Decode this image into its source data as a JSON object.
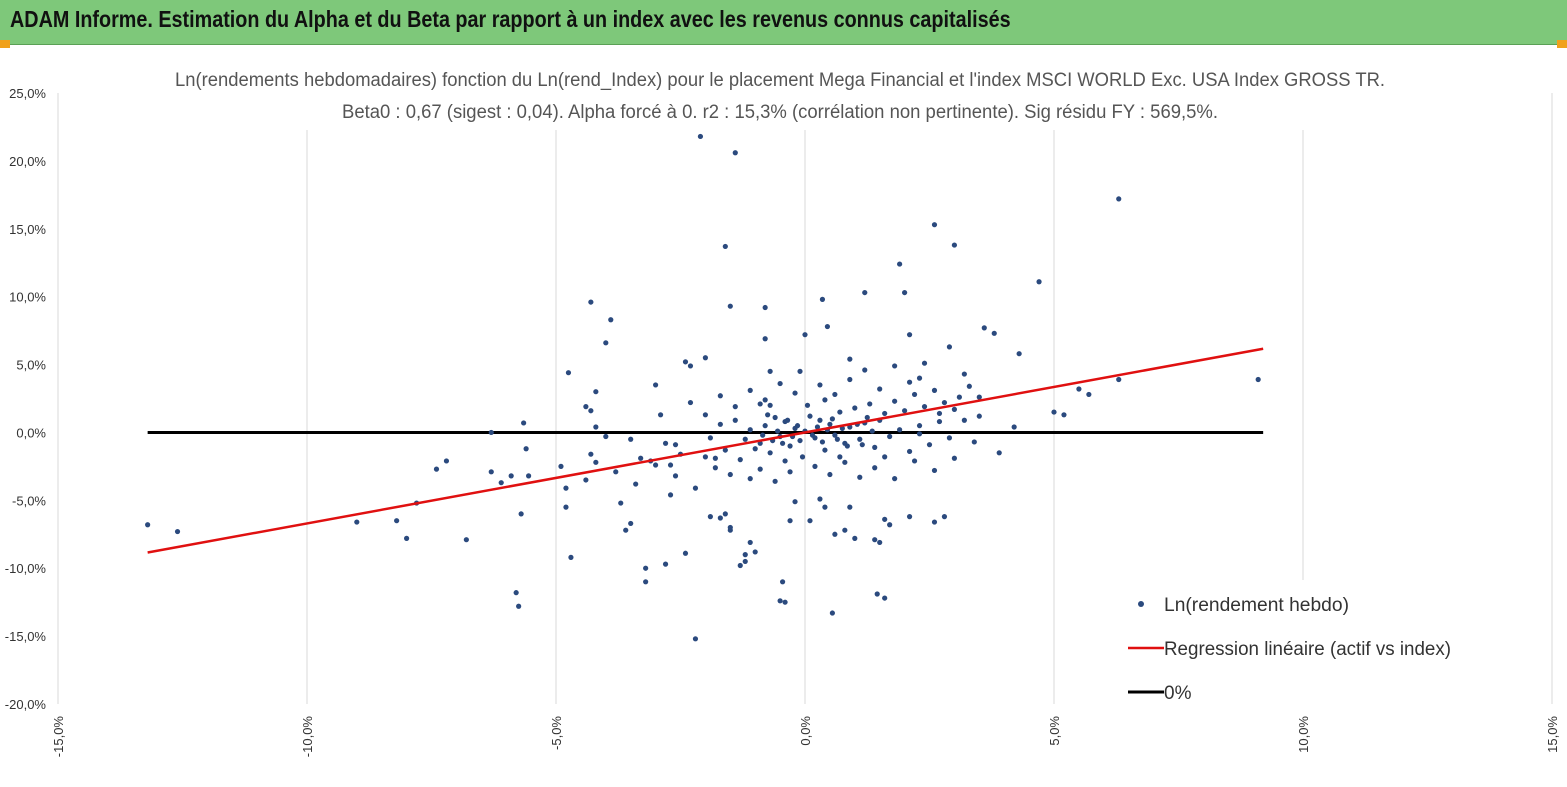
{
  "banner": {
    "title": "ADAM Informe. Estimation du Alpha et du Beta par rapport à un index avec les revenus connus capitalisés"
  },
  "colors": {
    "banner_bg": "#7ec87a",
    "corner_accent": "#f0a11c",
    "points": "#2b4a7e",
    "regression": "#e01010",
    "zero_line": "#000000",
    "grid": "#d9d9d9"
  },
  "chart_data": {
    "type": "scatter",
    "title_line1": "Ln(rendements hebdomadaires) fonction du Ln(rend_Index) pour le placement Mega Financial  et l'index MSCI WORLD Exc. USA Index GROSS TR.",
    "title_line2": "Beta0 : 0,67 (sigest : 0,04). Alpha forcé à 0. r2 : 15,3% (corrélation non pertinente). Sig résidu FY : 569,5%.",
    "xlim": [
      -15,
      15
    ],
    "ylim": [
      -20,
      25
    ],
    "x_ticks": [
      -15,
      -10,
      -5,
      0,
      5,
      10,
      15
    ],
    "x_tick_labels": [
      "-15,0%",
      "-10,0%",
      "-5,0%",
      "0,0%",
      "5,0%",
      "10,0%",
      "15,0%"
    ],
    "y_ticks": [
      25,
      20,
      15,
      10,
      5,
      0,
      -5,
      -10,
      -15,
      -20
    ],
    "y_tick_labels": [
      "25,0%",
      "20,0%",
      "15,0%",
      "10,0%",
      "5,0%",
      "0,0%",
      "-5,0%",
      "-10,0%",
      "-15,0%",
      "-20,0%"
    ],
    "grid": "vertical",
    "legend_position": "bottom-right",
    "legend": [
      "Ln(rendement hebdo)",
      "Regression linéaire (actif vs index)",
      "0%"
    ],
    "regression": {
      "slope": 0.67,
      "intercept": 0,
      "x_range": [
        -13.2,
        9.2
      ]
    },
    "zero_line": {
      "y": 0,
      "x_range": [
        -13.2,
        9.2
      ]
    },
    "points": [
      [
        -13.2,
        -6.8
      ],
      [
        -12.6,
        -7.3
      ],
      [
        -9,
        -6.6
      ],
      [
        -8.2,
        -6.5
      ],
      [
        -8,
        -7.8
      ],
      [
        -7.8,
        -5.2
      ],
      [
        -7.4,
        -2.7
      ],
      [
        -7.2,
        -2.1
      ],
      [
        -6.8,
        -7.9
      ],
      [
        -6.3,
        0
      ],
      [
        -6.3,
        -2.9
      ],
      [
        -6.1,
        -3.7
      ],
      [
        -5.9,
        -3.2
      ],
      [
        -5.8,
        -11.8
      ],
      [
        -5.75,
        -12.8
      ],
      [
        -5.7,
        -6
      ],
      [
        -5.65,
        0.7
      ],
      [
        -5.6,
        -1.2
      ],
      [
        -5.55,
        -3.2
      ],
      [
        -4.9,
        -2.5
      ],
      [
        -4.8,
        -5.5
      ],
      [
        -4.8,
        -4.1
      ],
      [
        -4.7,
        -9.2
      ],
      [
        -4.75,
        4.4
      ],
      [
        -4.4,
        -3.5
      ],
      [
        -4.3,
        -1.6
      ],
      [
        -4.2,
        -2.2
      ],
      [
        -4.2,
        0.4
      ],
      [
        -4.3,
        9.6
      ],
      [
        -4.0,
        6.6
      ],
      [
        -3.9,
        8.3
      ],
      [
        -4.2,
        3
      ],
      [
        -4.4,
        1.9
      ],
      [
        -4.3,
        1.6
      ],
      [
        -4.0,
        -0.3
      ],
      [
        -3.7,
        -5.2
      ],
      [
        -3.6,
        -7.2
      ],
      [
        -3.5,
        -6.7
      ],
      [
        -3.2,
        -10
      ],
      [
        -3.2,
        -11
      ],
      [
        -3.1,
        -2.1
      ],
      [
        -3.0,
        3.5
      ],
      [
        -2.9,
        1.3
      ],
      [
        -2.8,
        -9.7
      ],
      [
        -2.7,
        -2.4
      ],
      [
        -2.6,
        -0.9
      ],
      [
        -2.4,
        -8.9
      ],
      [
        -2.4,
        5.2
      ],
      [
        -2.3,
        4.9
      ],
      [
        -2.2,
        -15.2
      ],
      [
        -2.0,
        5.5
      ],
      [
        -2.1,
        21.8
      ],
      [
        -1.9,
        -6.2
      ],
      [
        -1.8,
        -1.9
      ],
      [
        -1.7,
        -6.3
      ],
      [
        -1.6,
        -6
      ],
      [
        -1.5,
        -7.2
      ],
      [
        -1.5,
        -7
      ],
      [
        -1.4,
        20.6
      ],
      [
        -1.6,
        13.7
      ],
      [
        -1.5,
        9.3
      ],
      [
        -1.3,
        -9.8
      ],
      [
        -1.2,
        -9
      ],
      [
        -1.2,
        -9.5
      ],
      [
        -1.1,
        -8.1
      ],
      [
        -1.0,
        -8.8
      ],
      [
        -0.9,
        2.1
      ],
      [
        -0.8,
        9.2
      ],
      [
        -0.8,
        6.9
      ],
      [
        -0.7,
        4.5
      ],
      [
        -0.5,
        -12.4
      ],
      [
        -0.4,
        -12.5
      ],
      [
        -0.45,
        -11
      ],
      [
        -0.3,
        -6.5
      ],
      [
        -0.2,
        -5.1
      ],
      [
        -0.1,
        4.5
      ],
      [
        0,
        7.2
      ],
      [
        0.1,
        -6.5
      ],
      [
        0.3,
        -4.9
      ],
      [
        0.35,
        9.8
      ],
      [
        0.4,
        -5.5
      ],
      [
        0.45,
        7.8
      ],
      [
        0.55,
        -13.3
      ],
      [
        0.6,
        -7.5
      ],
      [
        0.8,
        -7.2
      ],
      [
        0.9,
        5.4
      ],
      [
        0.9,
        -5.5
      ],
      [
        1.0,
        -7.8
      ],
      [
        1.2,
        10.3
      ],
      [
        1.4,
        -7.9
      ],
      [
        1.45,
        -11.9
      ],
      [
        1.6,
        -12.2
      ],
      [
        1.5,
        -8.1
      ],
      [
        1.6,
        -6.4
      ],
      [
        1.7,
        -6.8
      ],
      [
        1.9,
        12.4
      ],
      [
        2.0,
        10.3
      ],
      [
        2.1,
        -6.2
      ],
      [
        2.1,
        7.2
      ],
      [
        2.3,
        4
      ],
      [
        2.6,
        15.3
      ],
      [
        2.6,
        -6.6
      ],
      [
        2.8,
        -6.2
      ],
      [
        2.9,
        6.3
      ],
      [
        3.0,
        13.8
      ],
      [
        3.2,
        4.3
      ],
      [
        3.5,
        2.6
      ],
      [
        3.6,
        7.7
      ],
      [
        3.8,
        7.3
      ],
      [
        3.9,
        -1.5
      ],
      [
        4.2,
        0.4
      ],
      [
        4.3,
        5.8
      ],
      [
        4.7,
        11.1
      ],
      [
        5.0,
        1.5
      ],
      [
        5.2,
        1.3
      ],
      [
        5.5,
        3.2
      ],
      [
        5.7,
        2.8
      ],
      [
        6.3,
        3.9
      ],
      [
        6.3,
        17.2
      ],
      [
        9.1,
        3.9
      ],
      [
        -1.2,
        -0.5
      ],
      [
        -1.1,
        0.2
      ],
      [
        -1.0,
        -1.2
      ],
      [
        -0.9,
        -0.8
      ],
      [
        -0.8,
        0.5
      ],
      [
        -0.7,
        -1.5
      ],
      [
        -0.6,
        1.1
      ],
      [
        -0.5,
        -0.3
      ],
      [
        -0.4,
        0.8
      ],
      [
        -0.3,
        -1.0
      ],
      [
        -0.2,
        0.3
      ],
      [
        -0.1,
        -0.6
      ],
      [
        0.0,
        0.1
      ],
      [
        0.1,
        1.2
      ],
      [
        0.2,
        -0.4
      ],
      [
        0.3,
        0.9
      ],
      [
        0.4,
        -1.3
      ],
      [
        0.5,
        0.6
      ],
      [
        0.6,
        -0.2
      ],
      [
        0.7,
        1.5
      ],
      [
        0.8,
        -0.8
      ],
      [
        0.9,
        0.4
      ],
      [
        1.0,
        1.8
      ],
      [
        1.1,
        -0.5
      ],
      [
        1.2,
        0.7
      ],
      [
        1.3,
        2.1
      ],
      [
        1.4,
        -1.1
      ],
      [
        1.5,
        0.9
      ],
      [
        1.6,
        1.4
      ],
      [
        1.7,
        -0.3
      ],
      [
        1.8,
        2.3
      ],
      [
        1.9,
        0.2
      ],
      [
        2.0,
        1.6
      ],
      [
        2.1,
        -1.4
      ],
      [
        2.2,
        2.8
      ],
      [
        2.3,
        0.5
      ],
      [
        2.4,
        1.9
      ],
      [
        2.5,
        -0.9
      ],
      [
        2.6,
        3.1
      ],
      [
        2.7,
        0.8
      ],
      [
        2.8,
        2.2
      ],
      [
        2.9,
        -0.4
      ],
      [
        3.0,
        1.7
      ],
      [
        3.1,
        2.6
      ],
      [
        3.2,
        0.9
      ],
      [
        3.3,
        3.4
      ],
      [
        3.4,
        -0.7
      ],
      [
        -2.0,
        -1.8
      ],
      [
        -1.9,
        -0.4
      ],
      [
        -1.8,
        -2.6
      ],
      [
        -1.7,
        0.6
      ],
      [
        -1.6,
        -1.3
      ],
      [
        -1.5,
        -3.1
      ],
      [
        -1.4,
        0.9
      ],
      [
        -1.3,
        -2.0
      ],
      [
        -2.5,
        -1.6
      ],
      [
        -2.6,
        -3.2
      ],
      [
        -2.8,
        -0.8
      ],
      [
        -3.0,
        -2.4
      ],
      [
        -3.3,
        -1.9
      ],
      [
        -3.5,
        -0.5
      ],
      [
        -3.8,
        -2.9
      ],
      [
        -2.2,
        -4.1
      ],
      [
        -2.7,
        -4.6
      ],
      [
        -3.4,
        -3.8
      ],
      [
        -1.1,
        -3.4
      ],
      [
        -0.9,
        -2.7
      ],
      [
        -0.6,
        -3.6
      ],
      [
        -0.3,
        -2.9
      ],
      [
        0.2,
        -2.5
      ],
      [
        0.5,
        -3.1
      ],
      [
        0.8,
        -2.2
      ],
      [
        1.1,
        -3.3
      ],
      [
        1.4,
        -2.6
      ],
      [
        1.8,
        -3.4
      ],
      [
        2.2,
        -2.1
      ],
      [
        2.6,
        -2.8
      ],
      [
        3.0,
        -1.9
      ],
      [
        0.3,
        3.5
      ],
      [
        0.6,
        2.8
      ],
      [
        0.9,
        3.9
      ],
      [
        1.2,
        4.6
      ],
      [
        1.5,
        3.2
      ],
      [
        1.8,
        4.9
      ],
      [
        2.1,
        3.7
      ],
      [
        2.4,
        5.1
      ],
      [
        -0.2,
        2.9
      ],
      [
        -0.5,
        3.6
      ],
      [
        -0.8,
        2.4
      ],
      [
        -1.1,
        3.1
      ],
      [
        -1.4,
        1.9
      ],
      [
        -1.7,
        2.7
      ],
      [
        -2.0,
        1.3
      ],
      [
        -2.3,
        2.2
      ],
      [
        0.15,
        -0.2
      ],
      [
        0.25,
        0.4
      ],
      [
        0.35,
        -0.7
      ],
      [
        0.45,
        0.2
      ],
      [
        -0.15,
        0.5
      ],
      [
        -0.25,
        -0.3
      ],
      [
        -0.35,
        0.9
      ],
      [
        -0.45,
        -0.8
      ],
      [
        0.55,
        1.0
      ],
      [
        0.65,
        -0.5
      ],
      [
        0.75,
        0.3
      ],
      [
        0.85,
        -1.0
      ],
      [
        -0.55,
        0.1
      ],
      [
        -0.65,
        -0.6
      ],
      [
        -0.75,
        1.3
      ],
      [
        -0.85,
        -0.2
      ],
      [
        1.05,
        0.6
      ],
      [
        1.15,
        -0.9
      ],
      [
        1.25,
        1.1
      ],
      [
        1.35,
        0.1
      ],
      [
        0.05,
        2.0
      ],
      [
        -0.05,
        -1.8
      ],
      [
        0.4,
        2.4
      ],
      [
        -0.4,
        -2.1
      ],
      [
        0.7,
        -1.8
      ],
      [
        -0.7,
        2.0
      ],
      [
        1.6,
        -1.8
      ],
      [
        2.3,
        -0.1
      ],
      [
        2.7,
        1.4
      ],
      [
        3.5,
        1.2
      ]
    ]
  }
}
